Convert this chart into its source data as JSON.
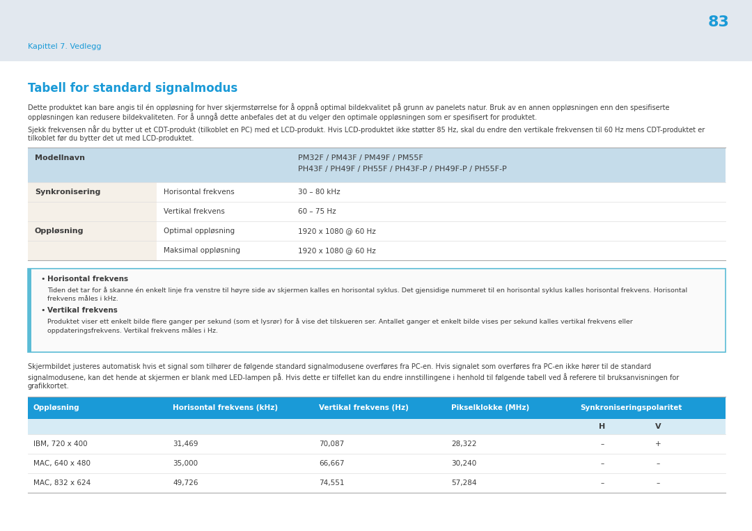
{
  "page_num": "83",
  "header_text": "Kapittel 7. Vedlegg",
  "bg_color_header": "#e2e8ef",
  "bg_color_page": "#ffffff",
  "title": "Tabell for standard signalmodus",
  "title_color": "#1a9ad7",
  "p1_line1": "Dette produktet kan bare angis til én oppløsning for hver skjermstørrelse for å oppnå optimal bildekvalitet på grunn av panelets natur. Bruk av en annen oppløsningen enn den spesifiserte",
  "p1_line2": "oppløsningen kan redusere bildekvaliteten. For å unngå dette anbefales det at du velger den optimale oppløsningen som er spesifisert for produktet.",
  "p2_line1": "Sjekk frekvensen når du bytter ut et CDT-produkt (tilkoblet en PC) med et LCD-produkt. Hvis LCD-produktet ikke støtter 85 Hz, skal du endre den vertikale frekvensen til 60 Hz mens CDT-produktet er",
  "p2_line2": "tilkoblet før du bytter det ut med LCD-produktet.",
  "table1_header_bg": "#c5dcea",
  "table1_row_bg": "#f5f0e8",
  "table1_modell_line1": "PM32F / PM43F / PM49F / PM55F",
  "table1_modell_line2": "PH43F / PH49F / PH55F / PH43F-P / PH49F-P / PH55F-P",
  "table1_rows": [
    [
      "Synkronisering",
      "Horisontal frekvens",
      "30 – 80 kHz"
    ],
    [
      "",
      "Vertikal frekvens",
      "60 – 75 Hz"
    ],
    [
      "Oppløsning",
      "Optimal oppløsning",
      "1920 x 1080 @ 60 Hz"
    ],
    [
      "",
      "Maksimal oppløsning",
      "1920 x 1080 @ 60 Hz"
    ]
  ],
  "note_box_border": "#5bbcd6",
  "note_box_bg": "#fafafa",
  "note1_title": "Horisontal frekvens",
  "note1_line1": "Tiden det tar for å skanne én enkelt linje fra venstre til høyre side av skjermen kalles en horisontal syklus. Det gjensidige nummeret til en horisontal syklus kalles horisontal frekvens. Horisontal",
  "note1_line2": "frekvens måles i kHz.",
  "note2_title": "Vertikal frekvens",
  "note2_line1": "Produktet viser ett enkelt bilde flere ganger per sekund (som et lysrør) for å vise det tilskueren ser. Antallet ganger et enkelt bilde vises per sekund kalles vertikal frekvens eller",
  "note2_line2": "oppdateringsfrekvens. Vertikal frekvens måles i Hz.",
  "p3_line1": "Skjermbildet justeres automatisk hvis et signal som tilhører de følgende standard signalmodusene overføres fra PC-en. Hvis signalet som overføres fra PC-en ikke hører til de standard",
  "p3_line2": "signalmodusene, kan det hende at skjermen er blank med LED-lampen på. Hvis dette er tilfellet kan du endre innstillingene i henhold til følgende tabell ved å referere til bruksanvisningen for",
  "p3_line3": "grafikkortet.",
  "table2_header_bg": "#1a9ad7",
  "table2_subheader_bg": "#d6ebf5",
  "table2_col_headers": [
    "Oppløsning",
    "Horisontal frekvens (kHz)",
    "Vertikal frekvens (Hz)",
    "Pikselklokke (MHz)",
    "Synkroniseringspolaritet"
  ],
  "table2_rows": [
    [
      "IBM, 720 x 400",
      "31,469",
      "70,087",
      "28,322",
      "–",
      "+"
    ],
    [
      "MAC, 640 x 480",
      "35,000",
      "66,667",
      "30,240",
      "–",
      "–"
    ],
    [
      "MAC, 832 x 624",
      "49,726",
      "74,551",
      "57,284",
      "–",
      "–"
    ]
  ],
  "text_dark": "#3c3c3c",
  "text_blue": "#1a9ad7",
  "line_color_dark": "#aaaaaa",
  "line_color_light": "#dddddd"
}
